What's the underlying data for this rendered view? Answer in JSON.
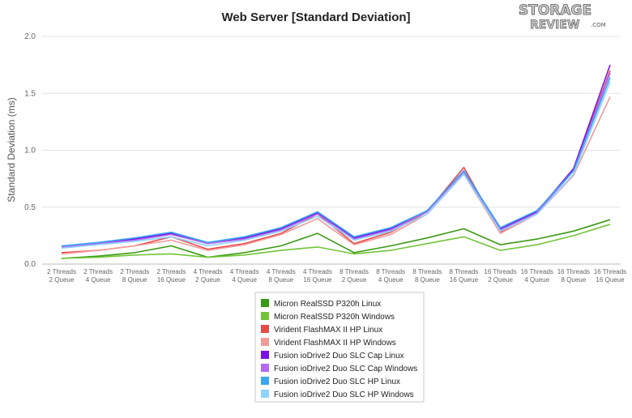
{
  "chart_data": {
    "type": "line",
    "title": "Web Server [Standard Deviation]",
    "xlabel": "",
    "ylabel": "Standard Deviation (ms)",
    "ylim": [
      0,
      2.0
    ],
    "yticks": [
      "0.0",
      "0.5",
      "1.0",
      "1.5",
      "2.0"
    ],
    "grid": true,
    "legend_position": "bottom-center",
    "categories": [
      [
        "2 Threads",
        "2 Queue"
      ],
      [
        "2 Threads",
        "4 Queue"
      ],
      [
        "2 Threads",
        "8 Queue"
      ],
      [
        "2 Threads",
        "16 Queue"
      ],
      [
        "4 Threads",
        "2 Queue"
      ],
      [
        "4 Threads",
        "4 Queue"
      ],
      [
        "4 Threads",
        "8 Queue"
      ],
      [
        "4 Threads",
        "16 Queue"
      ],
      [
        "8 Threads",
        "2 Queue"
      ],
      [
        "8 Threads",
        "4 Queue"
      ],
      [
        "8 Threads",
        "8 Queue"
      ],
      [
        "8 Threads",
        "16 Queue"
      ],
      [
        "16 Threads",
        "2 Queue"
      ],
      [
        "16 Threads",
        "4 Queue"
      ],
      [
        "16 Threads",
        "8 Queue"
      ],
      [
        "16 Threads",
        "16 Queue"
      ]
    ],
    "series": [
      {
        "name": "Micron RealSSD P320h Linux",
        "color": "#3a9a13",
        "values": [
          0.05,
          0.07,
          0.1,
          0.16,
          0.06,
          0.1,
          0.16,
          0.27,
          0.1,
          0.16,
          0.23,
          0.31,
          0.17,
          0.22,
          0.29,
          0.39
        ]
      },
      {
        "name": "Micron RealSSD P320h Windows",
        "color": "#72c43a",
        "values": [
          0.05,
          0.06,
          0.08,
          0.09,
          0.06,
          0.08,
          0.12,
          0.15,
          0.09,
          0.12,
          0.18,
          0.24,
          0.12,
          0.17,
          0.25,
          0.35
        ]
      },
      {
        "name": "Virident FlashMAX II HP Linux",
        "color": "#e84a4a",
        "values": [
          0.1,
          0.12,
          0.16,
          0.24,
          0.13,
          0.18,
          0.27,
          0.44,
          0.18,
          0.28,
          0.46,
          0.85,
          0.28,
          0.46,
          0.83,
          1.7
        ]
      },
      {
        "name": "Virident FlashMAX II HP Windows",
        "color": "#f29a9a",
        "values": [
          0.09,
          0.12,
          0.16,
          0.21,
          0.12,
          0.17,
          0.26,
          0.4,
          0.17,
          0.26,
          0.44,
          0.79,
          0.27,
          0.44,
          0.78,
          1.47
        ]
      },
      {
        "name": "Fusion ioDrive2 Duo SLC Cap Linux",
        "color": "#7a12e8",
        "values": [
          0.15,
          0.18,
          0.22,
          0.27,
          0.18,
          0.23,
          0.31,
          0.45,
          0.23,
          0.31,
          0.47,
          0.82,
          0.31,
          0.46,
          0.84,
          1.75
        ]
      },
      {
        "name": "Fusion ioDrive2 Duo SLC Cap Windows",
        "color": "#b26af2",
        "values": [
          0.15,
          0.18,
          0.21,
          0.26,
          0.18,
          0.22,
          0.3,
          0.44,
          0.22,
          0.3,
          0.46,
          0.81,
          0.3,
          0.45,
          0.82,
          1.68
        ]
      },
      {
        "name": "Fusion ioDrive2 Duo SLC HP Linux",
        "color": "#3aa6f0",
        "values": [
          0.16,
          0.19,
          0.23,
          0.28,
          0.19,
          0.24,
          0.32,
          0.46,
          0.24,
          0.32,
          0.47,
          0.82,
          0.32,
          0.47,
          0.82,
          1.64
        ]
      },
      {
        "name": "Fusion ioDrive2 Duo SLC HP Windows",
        "color": "#8fd3fb",
        "values": [
          0.14,
          0.17,
          0.2,
          0.24,
          0.16,
          0.21,
          0.29,
          0.42,
          0.21,
          0.29,
          0.44,
          0.79,
          0.29,
          0.44,
          0.79,
          1.6
        ]
      }
    ]
  },
  "logo": {
    "top": "STORAGE",
    "bottom": "REVIEW",
    "suffix": ".COM"
  }
}
